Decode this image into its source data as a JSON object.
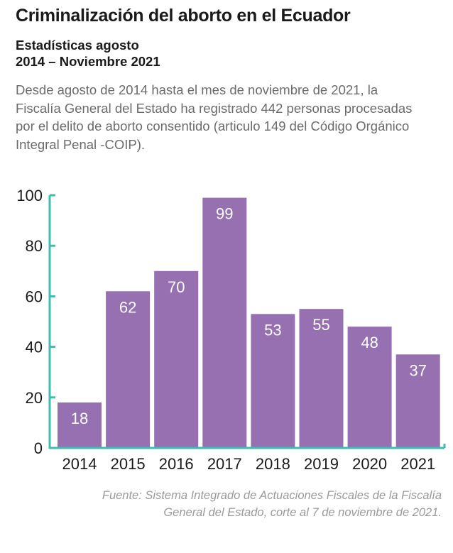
{
  "header": {
    "title": "Criminalización del aborto en el Ecuador",
    "subtitle_line1": "Estadísticas agosto",
    "subtitle_line2": "2014 – Noviembre 2021",
    "description": "Desde agosto de 2014 hasta el mes de noviembre de 2021, la Fiscalía General del Estado ha registrado 442 personas procesadas por el delito de aborto consentido (articulo 149 del Código Orgánico Integral Penal -COIP)."
  },
  "chart_data": {
    "type": "bar",
    "categories": [
      "2014",
      "2015",
      "2016",
      "2017",
      "2018",
      "2019",
      "2020",
      "2021"
    ],
    "values": [
      18,
      62,
      70,
      99,
      53,
      55,
      48,
      37
    ],
    "yticks": [
      0,
      20,
      40,
      60,
      80,
      100
    ],
    "ylim": [
      0,
      100
    ],
    "title": "",
    "xlabel": "",
    "ylabel": "",
    "bar_color": "#9670b0",
    "axis_color": "#3dbdb0",
    "label_color": "#ffffff"
  },
  "footer": {
    "source": "Fuente: Sistema Integrado de Actuaciones Fiscales de la Fiscalía General del Estado, corte al 7 de noviembre de 2021."
  }
}
